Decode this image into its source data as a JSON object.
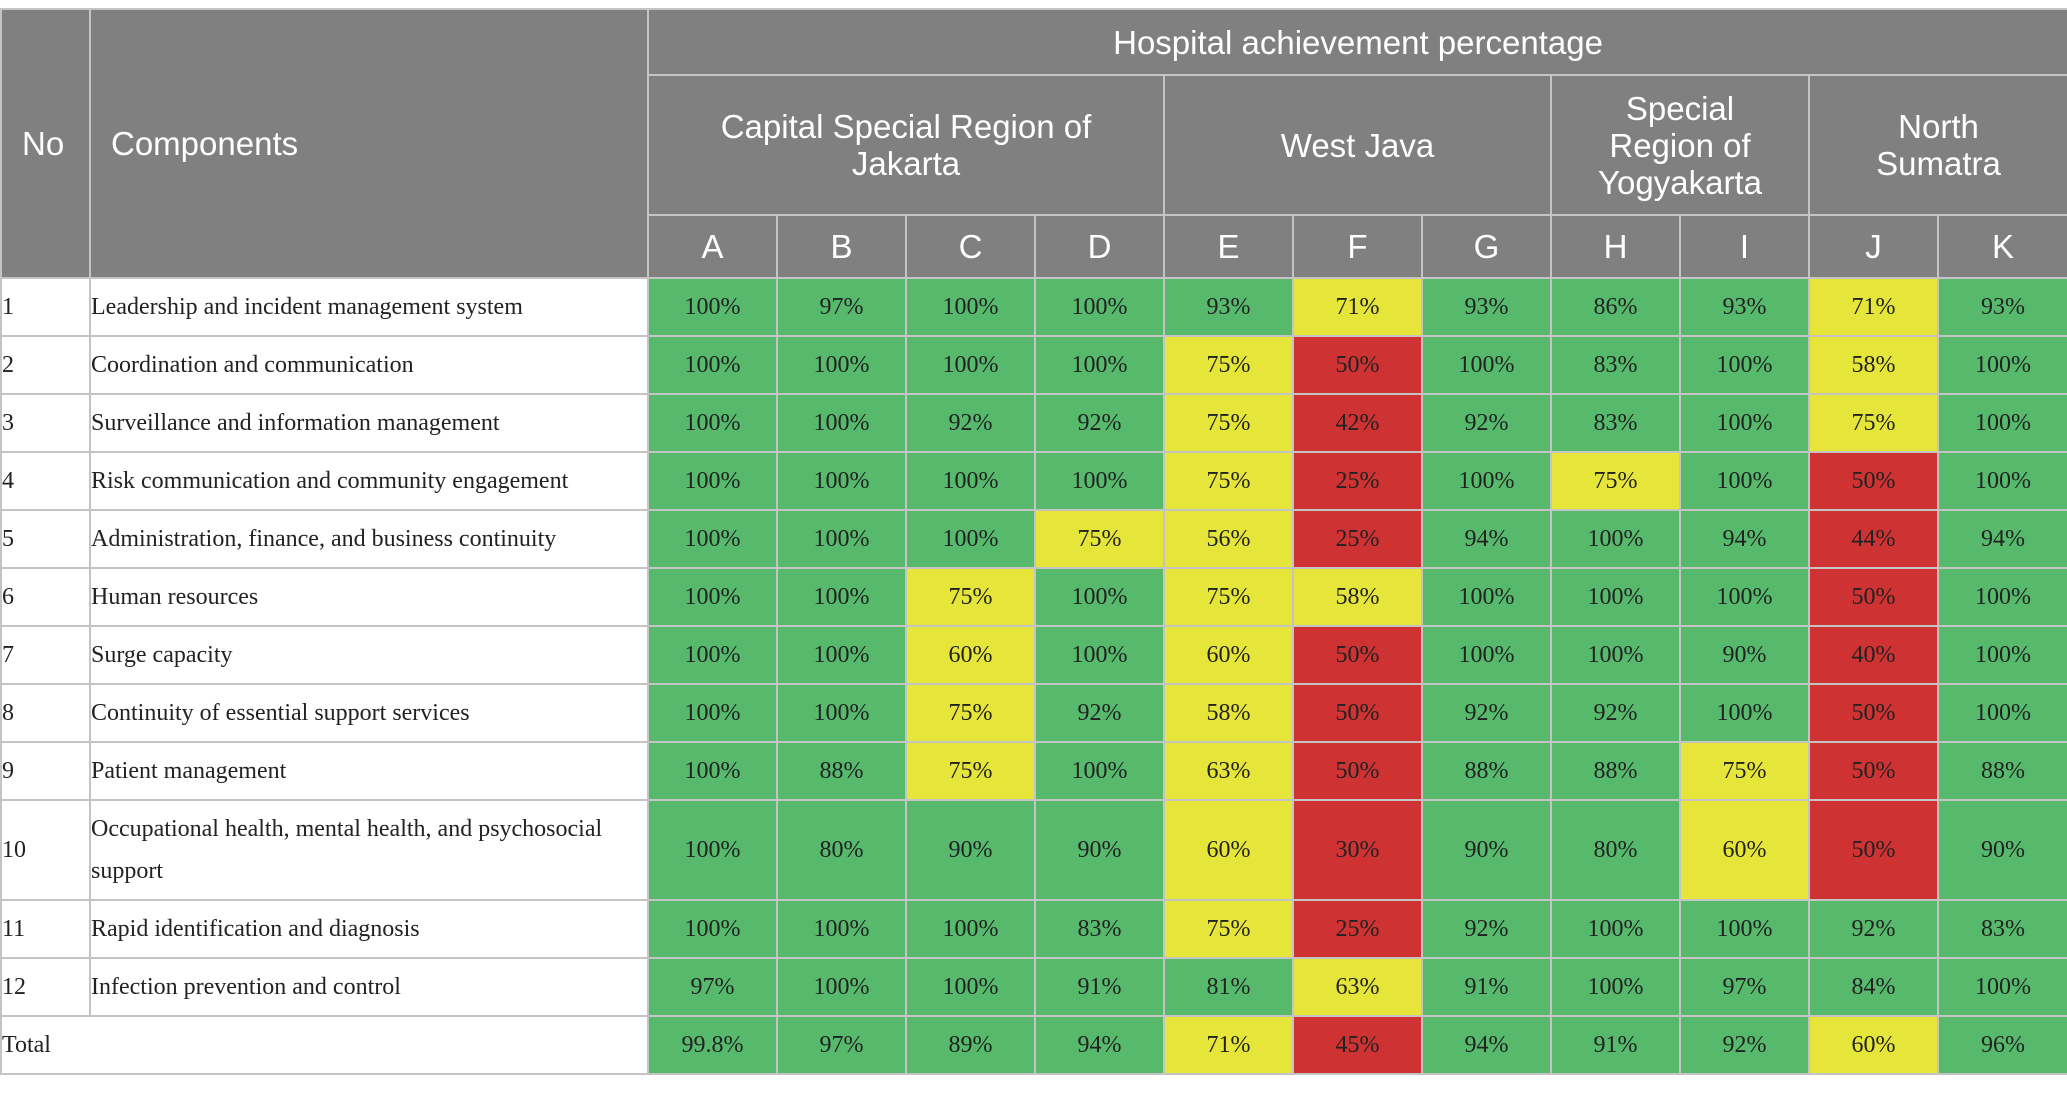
{
  "colors": {
    "header_bg": "#808080",
    "green": "#56b96c",
    "yellow": "#e6e53a",
    "red": "#cf3232",
    "grid": "#c4c4c4"
  },
  "header": {
    "no": "No",
    "components": "Components",
    "group_title": "Hospital achievement percentage",
    "regions": [
      "Capital Special Region of Jakarta",
      "West Java",
      "Special Region of Yogyakarta",
      "North Sumatra"
    ],
    "hospitals": [
      "A",
      "B",
      "C",
      "D",
      "E",
      "F",
      "G",
      "H",
      "I",
      "J",
      "K"
    ]
  },
  "rows": [
    {
      "no": "1",
      "component": "Leadership and incident management system",
      "values": [
        "100%",
        "97%",
        "100%",
        "100%",
        "93%",
        "71%",
        "93%",
        "86%",
        "93%",
        "71%",
        "93%"
      ],
      "levels": [
        "green",
        "green",
        "green",
        "green",
        "green",
        "yellow",
        "green",
        "green",
        "green",
        "yellow",
        "green"
      ]
    },
    {
      "no": "2",
      "component": "Coordination and communication",
      "values": [
        "100%",
        "100%",
        "100%",
        "100%",
        "75%",
        "50%",
        "100%",
        "83%",
        "100%",
        "58%",
        "100%"
      ],
      "levels": [
        "green",
        "green",
        "green",
        "green",
        "yellow",
        "red",
        "green",
        "green",
        "green",
        "yellow",
        "green"
      ]
    },
    {
      "no": "3",
      "component": "Surveillance and information management",
      "values": [
        "100%",
        "100%",
        "92%",
        "92%",
        "75%",
        "42%",
        "92%",
        "83%",
        "100%",
        "75%",
        "100%"
      ],
      "levels": [
        "green",
        "green",
        "green",
        "green",
        "yellow",
        "red",
        "green",
        "green",
        "green",
        "yellow",
        "green"
      ]
    },
    {
      "no": "4",
      "component": "Risk communication and community engagement",
      "values": [
        "100%",
        "100%",
        "100%",
        "100%",
        "75%",
        "25%",
        "100%",
        "75%",
        "100%",
        "50%",
        "100%"
      ],
      "levels": [
        "green",
        "green",
        "green",
        "green",
        "yellow",
        "red",
        "green",
        "yellow",
        "green",
        "red",
        "green"
      ]
    },
    {
      "no": "5",
      "component": "Administration, finance, and business continuity",
      "values": [
        "100%",
        "100%",
        "100%",
        "75%",
        "56%",
        "25%",
        "94%",
        "100%",
        "94%",
        "44%",
        "94%"
      ],
      "levels": [
        "green",
        "green",
        "green",
        "yellow",
        "yellow",
        "red",
        "green",
        "green",
        "green",
        "red",
        "green"
      ]
    },
    {
      "no": "6",
      "component": "Human resources",
      "values": [
        "100%",
        "100%",
        "75%",
        "100%",
        "75%",
        "58%",
        "100%",
        "100%",
        "100%",
        "50%",
        "100%"
      ],
      "levels": [
        "green",
        "green",
        "yellow",
        "green",
        "yellow",
        "yellow",
        "green",
        "green",
        "green",
        "red",
        "green"
      ]
    },
    {
      "no": "7",
      "component": "Surge capacity",
      "values": [
        "100%",
        "100%",
        "60%",
        "100%",
        "60%",
        "50%",
        "100%",
        "100%",
        "90%",
        "40%",
        "100%"
      ],
      "levels": [
        "green",
        "green",
        "yellow",
        "green",
        "yellow",
        "red",
        "green",
        "green",
        "green",
        "red",
        "green"
      ]
    },
    {
      "no": "8",
      "component": "Continuity of essential support services",
      "values": [
        "100%",
        "100%",
        "75%",
        "92%",
        "58%",
        "50%",
        "92%",
        "92%",
        "100%",
        "50%",
        "100%"
      ],
      "levels": [
        "green",
        "green",
        "yellow",
        "green",
        "yellow",
        "red",
        "green",
        "green",
        "green",
        "red",
        "green"
      ]
    },
    {
      "no": "9",
      "component": "Patient management",
      "values": [
        "100%",
        "88%",
        "75%",
        "100%",
        "63%",
        "50%",
        "88%",
        "88%",
        "75%",
        "50%",
        "88%"
      ],
      "levels": [
        "green",
        "green",
        "yellow",
        "green",
        "yellow",
        "red",
        "green",
        "green",
        "yellow",
        "red",
        "green"
      ]
    },
    {
      "no": "10",
      "component": "Occupational health, mental health, and psychosocial support",
      "values": [
        "100%",
        "80%",
        "90%",
        "90%",
        "60%",
        "30%",
        "90%",
        "80%",
        "60%",
        "50%",
        "90%"
      ],
      "levels": [
        "green",
        "green",
        "green",
        "green",
        "yellow",
        "red",
        "green",
        "green",
        "yellow",
        "red",
        "green"
      ]
    },
    {
      "no": "11",
      "component": "Rapid identification and diagnosis",
      "values": [
        "100%",
        "100%",
        "100%",
        "83%",
        "75%",
        "25%",
        "92%",
        "100%",
        "100%",
        "92%",
        "83%"
      ],
      "levels": [
        "green",
        "green",
        "green",
        "green",
        "yellow",
        "red",
        "green",
        "green",
        "green",
        "green",
        "green"
      ]
    },
    {
      "no": "12",
      "component": "Infection prevention and control",
      "values": [
        "97%",
        "100%",
        "100%",
        "91%",
        "81%",
        "63%",
        "91%",
        "100%",
        "97%",
        "84%",
        "100%"
      ],
      "levels": [
        "green",
        "green",
        "green",
        "green",
        "green",
        "yellow",
        "green",
        "green",
        "green",
        "green",
        "green"
      ]
    }
  ],
  "total": {
    "label": "Total",
    "values": [
      "99.8%",
      "97%",
      "89%",
      "94%",
      "71%",
      "45%",
      "94%",
      "91%",
      "92%",
      "60%",
      "96%"
    ],
    "levels": [
      "green",
      "green",
      "green",
      "green",
      "yellow",
      "red",
      "green",
      "green",
      "green",
      "yellow",
      "green"
    ]
  }
}
